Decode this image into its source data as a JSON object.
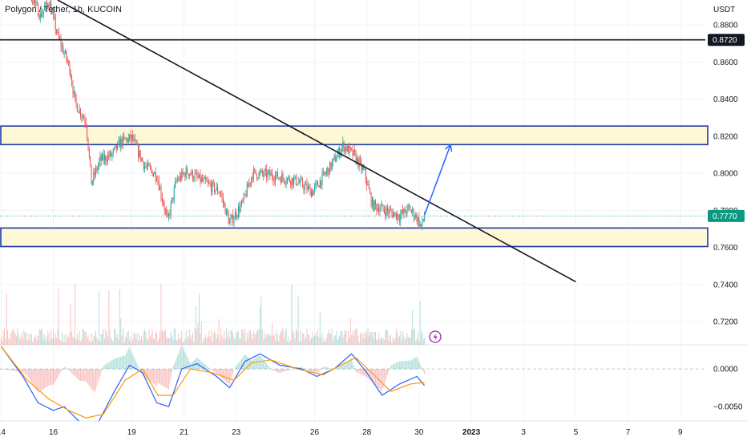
{
  "header": {
    "symbol_title": "Polygon / Tether, 1h, KUCOIN"
  },
  "colors": {
    "up": "#26a69a",
    "down": "#ef5350",
    "zone_fill": "#fff8d6",
    "zone_border": "#1c3aa9",
    "macd_line": "#2962ff",
    "signal_line": "#ff9800",
    "arrow": "#2962ff",
    "price_tag": "#089981",
    "level_tag": "#131722"
  },
  "chart_data": [
    {
      "type": "candlestick",
      "title": "Polygon / Tether, 1h, KUCOIN",
      "y_unit": "USDT",
      "ylim": [
        0.7075,
        0.8935
      ],
      "x_range": [
        "2022-12-13 23:00",
        "2023-01-09 23:00"
      ],
      "x_ticks": [
        {
          "label": "14",
          "date": "2022-12-14"
        },
        {
          "label": "16",
          "date": "2022-12-16"
        },
        {
          "label": "19",
          "date": "2022-12-19"
        },
        {
          "label": "21",
          "date": "2022-12-21"
        },
        {
          "label": "23",
          "date": "2022-12-23"
        },
        {
          "label": "26",
          "date": "2022-12-26"
        },
        {
          "label": "28",
          "date": "2022-12-28"
        },
        {
          "label": "30",
          "date": "2022-12-30"
        },
        {
          "label": "2023",
          "date": "2023-01-01"
        },
        {
          "label": "3",
          "date": "2023-01-03"
        },
        {
          "label": "5",
          "date": "2023-01-05"
        },
        {
          "label": "7",
          "date": "2023-01-07"
        },
        {
          "label": "9",
          "date": "2023-01-09"
        }
      ],
      "y_ticks": [
        "0.8800",
        "0.8600",
        "0.8400",
        "0.8200",
        "0.8000",
        "0.7800",
        "0.7600",
        "0.7400",
        "0.7200"
      ],
      "current_price": "0.7770",
      "horizontal_level": "0.8720",
      "resistance_zone": [
        0.8155,
        0.8255
      ],
      "support_zone": [
        0.7605,
        0.7705
      ],
      "trendline": [
        {
          "date": "2022-12-16 04:00",
          "y": 0.8935
        },
        {
          "date": "2023-01-05 00:00",
          "y": 0.7415
        }
      ],
      "projection_arrow": [
        {
          "date": "2022-12-30 05:00",
          "y": 0.7775
        },
        {
          "date": "2022-12-31 05:00",
          "y": 0.8155
        }
      ],
      "price_path": [
        {
          "date": "2022-12-14 00:00",
          "y": 0.935
        },
        {
          "date": "2022-12-14 22:00",
          "y": 0.903
        },
        {
          "date": "2022-12-15 12:00",
          "y": 0.885
        },
        {
          "date": "2022-12-15 20:00",
          "y": 0.893
        },
        {
          "date": "2022-12-16 04:00",
          "y": 0.874
        },
        {
          "date": "2022-12-16 15:00",
          "y": 0.857
        },
        {
          "date": "2022-12-16 20:00",
          "y": 0.838
        },
        {
          "date": "2022-12-17 06:00",
          "y": 0.828
        },
        {
          "date": "2022-12-17 11:00",
          "y": 0.795
        },
        {
          "date": "2022-12-17 19:00",
          "y": 0.807
        },
        {
          "date": "2022-12-18 06:00",
          "y": 0.81
        },
        {
          "date": "2022-12-18 14:00",
          "y": 0.817
        },
        {
          "date": "2022-12-19 00:00",
          "y": 0.819
        },
        {
          "date": "2022-12-19 12:00",
          "y": 0.804
        },
        {
          "date": "2022-12-19 23:00",
          "y": 0.799
        },
        {
          "date": "2022-12-20 09:00",
          "y": 0.774
        },
        {
          "date": "2022-12-20 17:00",
          "y": 0.796
        },
        {
          "date": "2022-12-21 03:00",
          "y": 0.801
        },
        {
          "date": "2022-12-21 16:00",
          "y": 0.796
        },
        {
          "date": "2022-12-22 09:00",
          "y": 0.79
        },
        {
          "date": "2022-12-22 18:00",
          "y": 0.773
        },
        {
          "date": "2022-12-23 06:00",
          "y": 0.784
        },
        {
          "date": "2022-12-23 15:00",
          "y": 0.8
        },
        {
          "date": "2022-12-24 08:00",
          "y": 0.799
        },
        {
          "date": "2022-12-25 07:00",
          "y": 0.796
        },
        {
          "date": "2022-12-25 22:00",
          "y": 0.79
        },
        {
          "date": "2022-12-26 14:00",
          "y": 0.803
        },
        {
          "date": "2022-12-27 02:00",
          "y": 0.815
        },
        {
          "date": "2022-12-27 12:00",
          "y": 0.81
        },
        {
          "date": "2022-12-27 22:00",
          "y": 0.8
        },
        {
          "date": "2022-12-28 05:00",
          "y": 0.783
        },
        {
          "date": "2022-12-28 17:00",
          "y": 0.78
        },
        {
          "date": "2022-12-29 06:00",
          "y": 0.777
        },
        {
          "date": "2022-12-29 15:00",
          "y": 0.781
        },
        {
          "date": "2022-12-29 22:00",
          "y": 0.776
        },
        {
          "date": "2022-12-30 02:00",
          "y": 0.771
        },
        {
          "date": "2022-12-30 05:00",
          "y": 0.777
        }
      ]
    },
    {
      "type": "bar",
      "title": "Volume",
      "note": "volume histogram, no scale printed"
    },
    {
      "type": "line",
      "title": "MACD",
      "ylim": [
        -0.0069,
        0.0032
      ],
      "y_ticks": [
        "0.0000",
        "−0.0050"
      ],
      "series": [
        {
          "key": "macd",
          "color": "#2962ff",
          "path": [
            {
              "date": "2022-12-14 00:00",
              "y": 0.003
            },
            {
              "date": "2022-12-14 20:00",
              "y": -0.001
            },
            {
              "date": "2022-12-15 10:00",
              "y": -0.0045
            },
            {
              "date": "2022-12-16 00:00",
              "y": -0.0055
            },
            {
              "date": "2022-12-16 10:00",
              "y": -0.005
            },
            {
              "date": "2022-12-17 00:00",
              "y": -0.007
            },
            {
              "date": "2022-12-17 14:00",
              "y": -0.008
            },
            {
              "date": "2022-12-18 08:00",
              "y": -0.003
            },
            {
              "date": "2022-12-18 22:00",
              "y": 0.0005
            },
            {
              "date": "2022-12-19 10:00",
              "y": -0.0005
            },
            {
              "date": "2022-12-19 23:00",
              "y": -0.0045
            },
            {
              "date": "2022-12-20 10:00",
              "y": -0.005
            },
            {
              "date": "2022-12-20 22:00",
              "y": 0.0
            },
            {
              "date": "2022-12-21 12:00",
              "y": 0.0007
            },
            {
              "date": "2022-12-22 06:00",
              "y": -0.001
            },
            {
              "date": "2022-12-22 18:00",
              "y": -0.0025
            },
            {
              "date": "2022-12-23 08:00",
              "y": 0.001
            },
            {
              "date": "2022-12-23 22:00",
              "y": 0.002
            },
            {
              "date": "2022-12-24 16:00",
              "y": 0.0005
            },
            {
              "date": "2022-12-25 12:00",
              "y": 0.0
            },
            {
              "date": "2022-12-26 02:00",
              "y": -0.001
            },
            {
              "date": "2022-12-26 18:00",
              "y": 0.0
            },
            {
              "date": "2022-12-27 10:00",
              "y": 0.002
            },
            {
              "date": "2022-12-28 00:00",
              "y": -0.0005
            },
            {
              "date": "2022-12-28 14:00",
              "y": -0.0035
            },
            {
              "date": "2022-12-29 06:00",
              "y": -0.002
            },
            {
              "date": "2022-12-29 22:00",
              "y": -0.001
            },
            {
              "date": "2022-12-30 05:00",
              "y": -0.0022
            }
          ]
        },
        {
          "key": "signal",
          "color": "#ff9800",
          "path": [
            {
              "date": "2022-12-14 00:00",
              "y": 0.003
            },
            {
              "date": "2022-12-15 00:00",
              "y": -0.0015
            },
            {
              "date": "2022-12-15 20:00",
              "y": -0.004
            },
            {
              "date": "2022-12-16 14:00",
              "y": -0.0055
            },
            {
              "date": "2022-12-17 06:00",
              "y": -0.0065
            },
            {
              "date": "2022-12-17 22:00",
              "y": -0.006
            },
            {
              "date": "2022-12-18 18:00",
              "y": -0.0015
            },
            {
              "date": "2022-12-19 10:00",
              "y": 0.0
            },
            {
              "date": "2022-12-20 00:00",
              "y": -0.0035
            },
            {
              "date": "2022-12-20 14:00",
              "y": -0.0035
            },
            {
              "date": "2022-12-21 06:00",
              "y": 0.0
            },
            {
              "date": "2022-12-22 02:00",
              "y": -0.0005
            },
            {
              "date": "2022-12-22 22:00",
              "y": -0.0015
            },
            {
              "date": "2022-12-23 14:00",
              "y": 0.0008
            },
            {
              "date": "2022-12-24 08:00",
              "y": 0.0012
            },
            {
              "date": "2022-12-25 08:00",
              "y": 0.0
            },
            {
              "date": "2022-12-26 08:00",
              "y": -0.0008
            },
            {
              "date": "2022-12-27 00:00",
              "y": 0.0005
            },
            {
              "date": "2022-12-27 14:00",
              "y": 0.0015
            },
            {
              "date": "2022-12-28 08:00",
              "y": -0.001
            },
            {
              "date": "2022-12-28 22:00",
              "y": -0.003
            },
            {
              "date": "2022-12-29 16:00",
              "y": -0.002
            },
            {
              "date": "2022-12-30 05:00",
              "y": -0.0018
            }
          ]
        }
      ]
    }
  ]
}
